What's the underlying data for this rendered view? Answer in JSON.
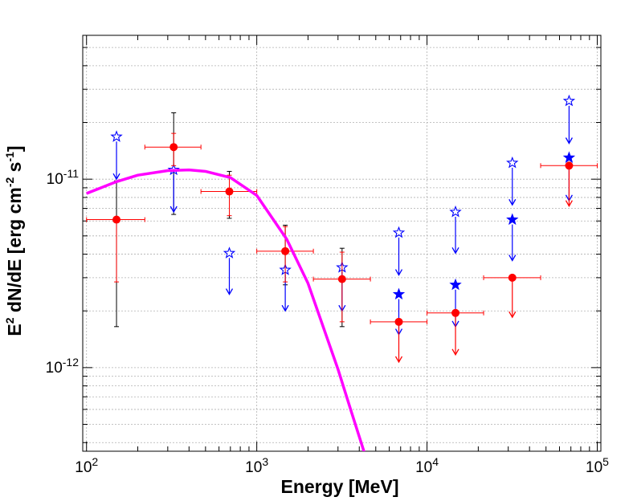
{
  "chart_data": {
    "type": "scatter",
    "xscale": "log",
    "yscale": "log",
    "xlim": [
      95,
      105000
    ],
    "ylim": [
      3.6e-13,
      5.8e-11
    ],
    "grid": true,
    "xlabel": "Energy [MeV]",
    "ylabel_parts": {
      "a": "E",
      "a_sup": "2",
      "b": " dN/dE [erg cm",
      "b_sup": "-2",
      "c": " s",
      "c_sup": "-1",
      "d": "]"
    },
    "x_ticks": [
      {
        "base": "10",
        "exp": "2",
        "value": 100
      },
      {
        "base": "10",
        "exp": "3",
        "value": 1000
      },
      {
        "base": "10",
        "exp": "4",
        "value": 10000
      },
      {
        "base": "10",
        "exp": "5",
        "value": 100000
      }
    ],
    "y_ticks": [
      {
        "base": "10",
        "exp": "-11",
        "value": 1e-11
      },
      {
        "base": "10",
        "exp": "-12",
        "value": 1e-12
      }
    ],
    "series": [
      {
        "name": "black-errorbars",
        "color": "#000000",
        "points": [
          {
            "x": 150,
            "lo": 1.65e-12,
            "hi": 9.8e-12
          },
          {
            "x": 325,
            "lo": 6.5e-12,
            "hi": 2.25e-11
          },
          {
            "x": 690,
            "lo": 6.2e-12,
            "hi": 1.1e-11
          },
          {
            "x": 1470,
            "lo": 2.75e-12,
            "hi": 5.7e-12
          },
          {
            "x": 3170,
            "lo": 1.65e-12,
            "hi": 4.3e-12
          }
        ]
      },
      {
        "name": "red-points",
        "color": "#ff0000",
        "points": [
          {
            "x": 150,
            "y": 6.1e-12,
            "xlo": 100,
            "xhi": 220,
            "ylo": 2.85e-12,
            "yhi": 6.1e-12,
            "ul": false
          },
          {
            "x": 325,
            "y": 1.48e-11,
            "xlo": 220,
            "xhi": 470,
            "ylo": 1.18e-11,
            "yhi": 1.75e-11,
            "ul": false
          },
          {
            "x": 690,
            "y": 8.6e-12,
            "xlo": 470,
            "xhi": 1000,
            "ylo": 6.4e-12,
            "yhi": 1.05e-11,
            "ul": false
          },
          {
            "x": 1470,
            "y": 4.15e-12,
            "xlo": 1000,
            "xhi": 2150,
            "ylo": 2.85e-12,
            "yhi": 5.6e-12,
            "ul": false
          },
          {
            "x": 3170,
            "y": 2.95e-12,
            "xlo": 2150,
            "xhi": 4650,
            "ylo": 1.75e-12,
            "yhi": 4.1e-12,
            "ul": false
          },
          {
            "x": 6830,
            "y": 1.75e-12,
            "xlo": 4650,
            "xhi": 10000,
            "ul": true,
            "arrow_to": 1.07e-12
          },
          {
            "x": 14700,
            "y": 1.95e-12,
            "xlo": 10000,
            "xhi": 21500,
            "ul": true,
            "arrow_to": 1.17e-12
          },
          {
            "x": 31700,
            "y": 3e-12,
            "xlo": 21500,
            "xhi": 46500,
            "ul": true,
            "arrow_to": 1.85e-12
          },
          {
            "x": 68300,
            "y": 1.18e-11,
            "xlo": 46500,
            "xhi": 100000,
            "ul": true,
            "arrow_to": 7.2e-12
          }
        ]
      },
      {
        "name": "blue-open-star-upper-limits",
        "color": "#0000ff",
        "filled": false,
        "points": [
          {
            "x": 150,
            "y": 1.68e-11,
            "arrow_to": 1e-11
          },
          {
            "x": 325,
            "y": 1.12e-11,
            "arrow_to": 6.7e-12
          },
          {
            "x": 690,
            "y": 4.05e-12,
            "arrow_to": 2.45e-12
          },
          {
            "x": 1470,
            "y": 3.3e-12,
            "arrow_to": 2e-12
          },
          {
            "x": 3170,
            "y": 3.4e-12,
            "arrow_to": 2e-12
          },
          {
            "x": 6830,
            "y": 5.2e-12,
            "arrow_to": 3.1e-12
          },
          {
            "x": 14700,
            "y": 6.7e-12,
            "arrow_to": 4.05e-12
          },
          {
            "x": 31700,
            "y": 1.22e-11,
            "arrow_to": 7.3e-12
          },
          {
            "x": 68300,
            "y": 2.6e-11,
            "arrow_to": 1.55e-11
          }
        ]
      },
      {
        "name": "blue-filled-star-upper-limits",
        "color": "#0000ff",
        "filled": true,
        "points": [
          {
            "x": 6830,
            "y": 2.45e-12,
            "arrow_to": 1.5e-12
          },
          {
            "x": 14700,
            "y": 2.75e-12,
            "arrow_to": 1.65e-12
          },
          {
            "x": 31700,
            "y": 6.1e-12,
            "arrow_to": 3.7e-12
          },
          {
            "x": 68300,
            "y": 1.3e-11,
            "arrow_to": 7.7e-12
          }
        ]
      },
      {
        "name": "model-curve",
        "color": "#ff00ff",
        "x": [
          100,
          150,
          200,
          300,
          400,
          500,
          700,
          1000,
          1500,
          2000,
          3000,
          3600,
          4000,
          4300
        ],
        "y": [
          8.4e-12,
          9.7e-12,
          1.05e-11,
          1.11e-11,
          1.12e-11,
          1.1e-11,
          1.02e-11,
          8.2e-12,
          4.8e-12,
          2.8e-12,
          9.8e-13,
          5.8e-13,
          4.3e-13,
          3.5e-13
        ]
      }
    ]
  }
}
